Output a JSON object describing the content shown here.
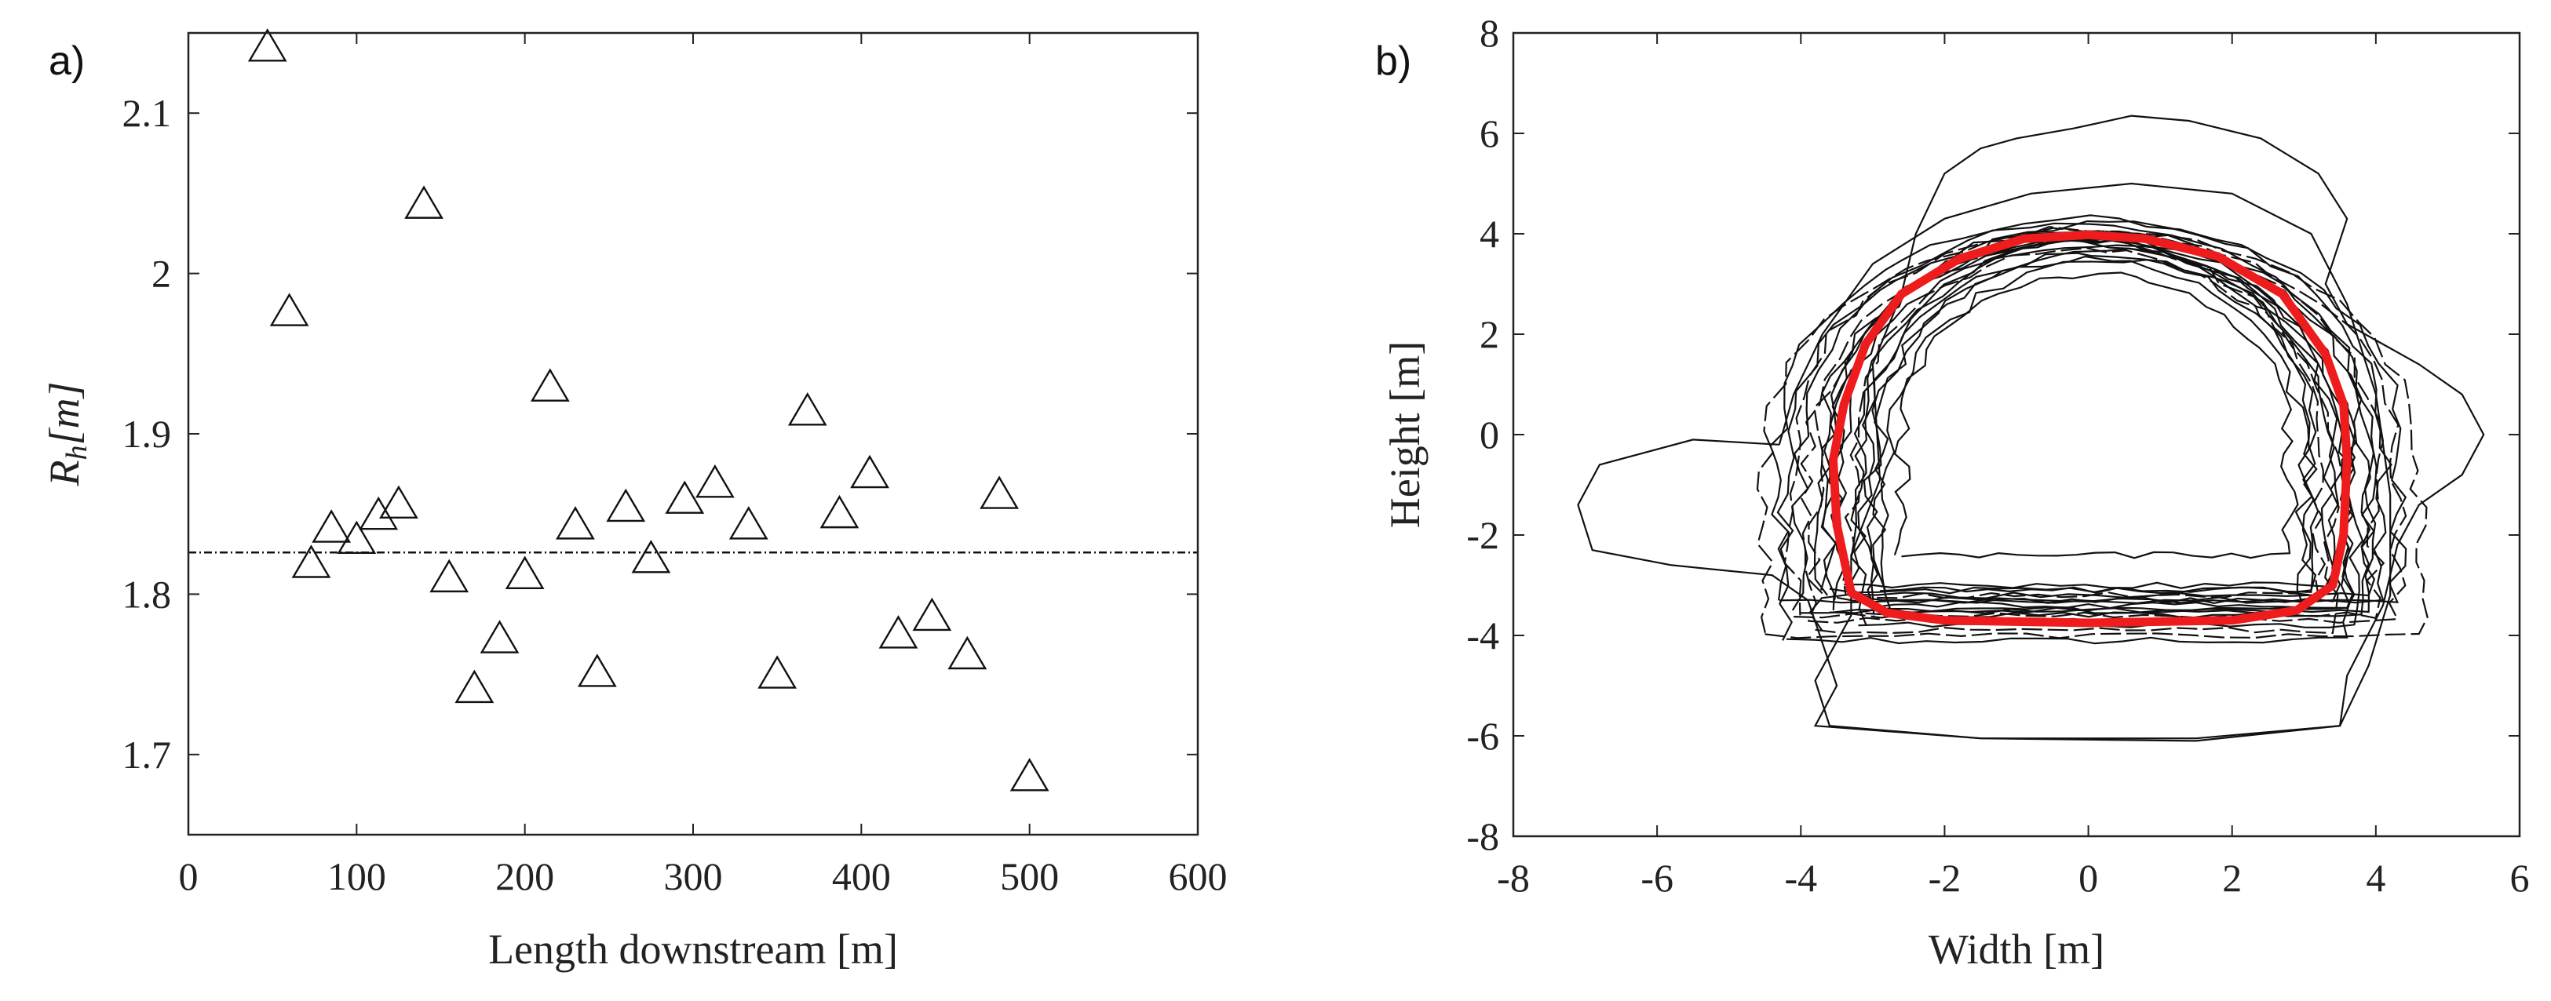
{
  "figure": {
    "panels": [
      {
        "label": "a)"
      },
      {
        "label": "b)"
      }
    ]
  },
  "chart_data": [
    {
      "type": "scatter",
      "panel": "a)",
      "title": "",
      "xlabel": "Length downstream [m]",
      "ylabel_main": "R",
      "ylabel_sub": "h",
      "ylabel_tail": "[m]",
      "xlim": [
        0,
        600
      ],
      "ylim": [
        1.65,
        2.15
      ],
      "xticks": [
        0,
        100,
        200,
        300,
        400,
        500,
        600
      ],
      "yticks": [
        1.7,
        1.8,
        1.9,
        2.0,
        2.1
      ],
      "ytick_labels": [
        "1.7",
        "1.8",
        "1.9",
        "2",
        "2.1"
      ],
      "marker": "triangle-open",
      "reference_line": {
        "y": 1.826,
        "style": "dash-dot"
      },
      "points": [
        {
          "x": 47,
          "y": 2.14
        },
        {
          "x": 60,
          "y": 1.975
        },
        {
          "x": 73,
          "y": 1.818
        },
        {
          "x": 85,
          "y": 1.84
        },
        {
          "x": 100,
          "y": 1.833
        },
        {
          "x": 113,
          "y": 1.848
        },
        {
          "x": 125,
          "y": 1.855
        },
        {
          "x": 140,
          "y": 2.042
        },
        {
          "x": 155,
          "y": 1.809
        },
        {
          "x": 170,
          "y": 1.74
        },
        {
          "x": 185,
          "y": 1.771
        },
        {
          "x": 200,
          "y": 1.811
        },
        {
          "x": 215,
          "y": 1.928
        },
        {
          "x": 230,
          "y": 1.842
        },
        {
          "x": 243,
          "y": 1.75
        },
        {
          "x": 260,
          "y": 1.853
        },
        {
          "x": 275,
          "y": 1.821
        },
        {
          "x": 295,
          "y": 1.858
        },
        {
          "x": 313,
          "y": 1.868
        },
        {
          "x": 333,
          "y": 1.842
        },
        {
          "x": 350,
          "y": 1.749
        },
        {
          "x": 368,
          "y": 1.913
        },
        {
          "x": 387,
          "y": 1.849
        },
        {
          "x": 405,
          "y": 1.874
        },
        {
          "x": 422,
          "y": 1.774
        },
        {
          "x": 442,
          "y": 1.785
        },
        {
          "x": 463,
          "y": 1.761
        },
        {
          "x": 482,
          "y": 1.861
        },
        {
          "x": 500,
          "y": 1.685
        }
      ]
    },
    {
      "type": "line",
      "panel": "b)",
      "title": "",
      "xlabel": "Width [m]",
      "ylabel": "Height [m]",
      "xlim": [
        -8,
        6
      ],
      "ylim": [
        -8,
        8
      ],
      "xticks": [
        -8,
        -6,
        -4,
        -2,
        0,
        2,
        4,
        6
      ],
      "yticks": [
        -8,
        -6,
        -4,
        -2,
        0,
        2,
        4,
        6,
        8
      ],
      "colors": {
        "profiles": "#111111",
        "mean": "#ee1c1c"
      },
      "mean_profile": [
        [
          -3.3,
          -3.15
        ],
        [
          -2.8,
          -3.55
        ],
        [
          -2,
          -3.7
        ],
        [
          0,
          -3.75
        ],
        [
          2,
          -3.7
        ],
        [
          2.9,
          -3.5
        ],
        [
          3.4,
          -3.0
        ],
        [
          3.55,
          -2.0
        ],
        [
          3.6,
          -0.5
        ],
        [
          3.55,
          0.6
        ],
        [
          3.3,
          1.6
        ],
        [
          2.7,
          2.8
        ],
        [
          1.8,
          3.55
        ],
        [
          0.8,
          3.9
        ],
        [
          0,
          3.98
        ],
        [
          -0.9,
          3.9
        ],
        [
          -1.8,
          3.5
        ],
        [
          -2.6,
          2.8
        ],
        [
          -3.1,
          1.8
        ],
        [
          -3.4,
          0.6
        ],
        [
          -3.55,
          -0.5
        ],
        [
          -3.5,
          -1.8
        ],
        [
          -3.3,
          -3.15
        ]
      ],
      "measured_profiles": [
        {
          "x": [
            -4.3,
            4.3
          ],
          "y": [
            -3.3,
            4.3
          ]
        },
        {
          "x": [
            -4.5,
            4.6
          ],
          "y": [
            -4.0,
            4.1
          ]
        },
        {
          "x": [
            -3.2,
            3.4
          ],
          "y": [
            -3.3,
            3.8
          ]
        },
        {
          "x": [
            -3.6,
            3.6
          ],
          "y": [
            -3.5,
            3.9
          ]
        },
        {
          "x": [
            -2.9,
            3.1
          ],
          "y": [
            -3.1,
            3.6
          ]
        },
        {
          "x": [
            -3.8,
            3.4
          ],
          "y": [
            -3.9,
            3.9
          ]
        },
        {
          "x": [
            -3.1,
            3.8
          ],
          "y": [
            -3.6,
            4.0
          ]
        },
        {
          "x": [
            -4.0,
            3.9
          ],
          "y": [
            -3.5,
            4.2
          ]
        },
        {
          "x": [
            -2.6,
            2.8
          ],
          "y": [
            -2.4,
            3.2
          ]
        },
        {
          "x": [
            -3.3,
            3.2
          ],
          "y": [
            -3.2,
            3.7
          ]
        },
        {
          "x": [
            -4.2,
            3.6
          ],
          "y": [
            -4.1,
            4.0
          ]
        },
        {
          "x": [
            -3.5,
            4.1
          ],
          "y": [
            -3.3,
            4.2
          ]
        },
        {
          "x": [
            -3.0,
            3.0
          ],
          "y": [
            -3.4,
            3.5
          ]
        },
        {
          "x": [
            -3.9,
            4.3
          ],
          "y": [
            -3.7,
            4.0
          ]
        },
        {
          "x": [
            -3.4,
            3.3
          ],
          "y": [
            -3.0,
            3.8
          ]
        },
        {
          "x": [
            -2.8,
            3.6
          ],
          "y": [
            -3.5,
            3.5
          ]
        },
        {
          "x": [
            -3.7,
            3.9
          ],
          "y": [
            -3.2,
            3.9
          ]
        },
        {
          "x": [
            -4.1,
            4.0
          ],
          "y": [
            -3.6,
            4.1
          ]
        },
        {
          "x": [
            -3.2,
            3.7
          ],
          "y": [
            -3.8,
            3.7
          ]
        },
        {
          "x": [
            -3.6,
            3.1
          ],
          "y": [
            -3.1,
            3.9
          ]
        }
      ],
      "outlier_profiles": [
        [
          [
            -4.3,
            -0.2
          ],
          [
            -5.5,
            -0.1
          ],
          [
            -6.8,
            -0.6
          ],
          [
            -7.1,
            -1.4
          ],
          [
            -6.9,
            -2.3
          ],
          [
            -5.8,
            -2.6
          ],
          [
            -4.4,
            -2.8
          ],
          [
            -3.9,
            -3.3
          ],
          [
            -3.5,
            -5.0
          ],
          [
            -3.8,
            -5.8
          ],
          [
            -1.5,
            -6.05
          ],
          [
            1.5,
            -6.05
          ],
          [
            3.5,
            -5.8
          ],
          [
            3.9,
            -4.6
          ],
          [
            4.2,
            -3.2
          ],
          [
            4.2,
            -1.2
          ],
          [
            4.0,
            0.8
          ],
          [
            3.6,
            2.6
          ],
          [
            3.1,
            4.0
          ],
          [
            2.0,
            4.8
          ],
          [
            0.6,
            5.0
          ],
          [
            -0.8,
            4.8
          ],
          [
            -2.0,
            4.3
          ],
          [
            -3.0,
            3.4
          ],
          [
            -3.7,
            2.0
          ],
          [
            -4.1,
            0.8
          ],
          [
            -4.3,
            -0.2
          ]
        ],
        [
          [
            -2.9,
            -0.9
          ],
          [
            -3.0,
            1.4
          ],
          [
            -2.6,
            2.8
          ],
          [
            -2.4,
            4.0
          ],
          [
            -2.0,
            5.2
          ],
          [
            -1.5,
            5.7
          ],
          [
            -1.0,
            5.9
          ],
          [
            -0.2,
            6.1
          ],
          [
            0.6,
            6.35
          ],
          [
            1.4,
            6.25
          ],
          [
            2.4,
            5.9
          ],
          [
            3.2,
            5.2
          ],
          [
            3.6,
            4.3
          ],
          [
            3.3,
            3.0
          ],
          [
            3.6,
            2.2
          ],
          [
            4.6,
            1.4
          ],
          [
            5.2,
            0.8
          ],
          [
            5.5,
            0.0
          ],
          [
            5.2,
            -0.8
          ],
          [
            4.6,
            -1.4
          ],
          [
            4.3,
            -2.2
          ],
          [
            4.1,
            -3.4
          ],
          [
            3.6,
            -4.8
          ],
          [
            3.5,
            -5.8
          ],
          [
            1.5,
            -6.1
          ],
          [
            -1.5,
            -6.05
          ],
          [
            -3.6,
            -5.8
          ],
          [
            -3.8,
            -4.9
          ],
          [
            -3.3,
            -3.6
          ],
          [
            -3.3,
            -2.4
          ],
          [
            -2.9,
            -0.9
          ]
        ]
      ]
    }
  ]
}
